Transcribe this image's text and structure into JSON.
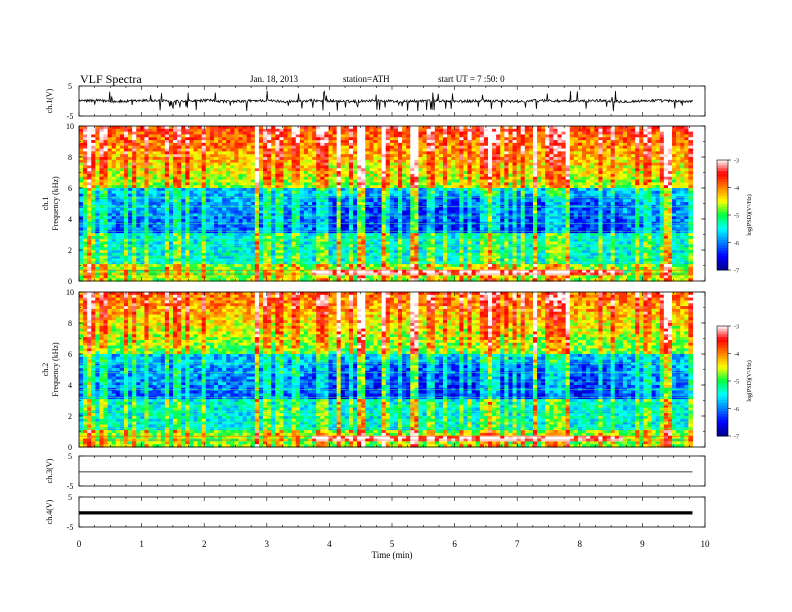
{
  "header": {
    "title": "VLF Spectra",
    "date": "Jan. 18, 2013",
    "station": "station=ATH",
    "start": "start  UT =  7 :50: 0"
  },
  "chart_data": [
    {
      "type": "line",
      "panel": "ch1-waveform",
      "ylabel": "ch.1(V)",
      "ylim": [
        -5,
        5
      ],
      "yticks": [
        "5",
        "-5"
      ],
      "description_values": {
        "baseline": 0.0,
        "spike_max": 3.5,
        "spike_min": -3.0
      }
    },
    {
      "type": "heatmap",
      "panel": "ch1-spectrogram",
      "ylabel": "Frequency (kHz)",
      "channel_label": "ch.1",
      "ylim": [
        0,
        10
      ],
      "yticks": [
        "0",
        "2",
        "4",
        "6",
        "8",
        "10"
      ],
      "colorbar": {
        "label": "log(PSD)(V²/Hz)",
        "range": [
          -7,
          -3
        ],
        "ticks": [
          "-3",
          "-4",
          "-5",
          "-6",
          "-7"
        ]
      }
    },
    {
      "type": "heatmap",
      "panel": "ch2-spectrogram",
      "ylabel": "Frequency (kHz)",
      "channel_label": "ch.2",
      "ylim": [
        0,
        10
      ],
      "yticks": [
        "0",
        "2",
        "4",
        "6",
        "8",
        "10"
      ],
      "colorbar": {
        "label": "log(PSD)(V²/Hz)",
        "range": [
          -7,
          -3
        ],
        "ticks": [
          "-3",
          "-4",
          "-5",
          "-6",
          "-7"
        ]
      }
    },
    {
      "type": "line",
      "panel": "ch3-waveform",
      "ylabel": "ch.3(V)",
      "ylim": [
        -5,
        5
      ],
      "yticks": [
        "5",
        "-5"
      ],
      "description_values": {
        "baseline": -0.3
      }
    },
    {
      "type": "line",
      "panel": "ch4-waveform",
      "ylabel": "ch.4(V)",
      "ylim": [
        -5,
        5
      ],
      "yticks": [
        "5",
        "-5"
      ],
      "description_values": {
        "baseline": -0.3
      }
    }
  ],
  "xaxis": {
    "label": "Time  (min)",
    "range": [
      0,
      10
    ],
    "ticks": [
      "0",
      "1",
      "2",
      "3",
      "4",
      "5",
      "6",
      "7",
      "8",
      "9",
      "10"
    ],
    "data_end": 9.8
  },
  "colors": {
    "scale": [
      "#00008b",
      "#0000ff",
      "#0080ff",
      "#00ffff",
      "#00ff40",
      "#ffff00",
      "#ff8000",
      "#ff0000",
      "#ffffff"
    ]
  }
}
